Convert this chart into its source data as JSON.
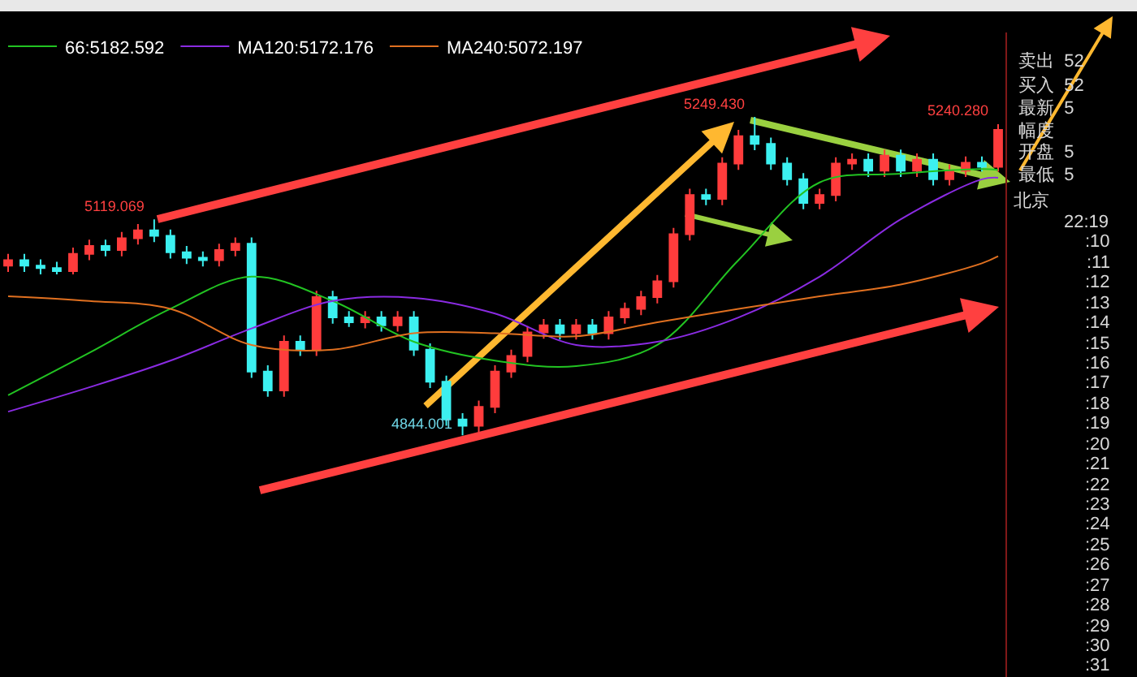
{
  "chart_data": {
    "type": "candlestick",
    "categories": [
      null,
      null,
      null,
      null,
      null,
      null,
      null,
      null,
      null,
      null,
      null,
      null,
      null,
      null,
      null,
      null,
      null,
      null,
      null,
      null,
      null,
      null,
      null,
      null,
      null,
      null,
      null,
      null,
      null,
      null,
      null,
      null,
      null,
      null,
      null,
      null,
      null,
      null,
      null,
      null,
      null,
      null,
      null,
      null,
      null,
      null,
      null,
      null,
      null,
      null,
      null,
      null,
      null,
      null,
      null,
      null,
      null,
      null,
      null,
      null,
      null,
      null
    ],
    "ohlc": [
      [
        5060,
        5075,
        5052,
        5067
      ],
      [
        5067,
        5075,
        5052,
        5060
      ],
      [
        5060,
        5068,
        5049,
        5057
      ],
      [
        5057,
        5065,
        5049,
        5053
      ],
      [
        5053,
        5083,
        5049,
        5075
      ],
      [
        5075,
        5093,
        5067,
        5085
      ],
      [
        5085,
        5093,
        5072,
        5080
      ],
      [
        5080,
        5103,
        5072,
        5095
      ],
      [
        5095,
        5113,
        5087,
        5105
      ],
      [
        5105,
        5119.069,
        5090,
        5098
      ],
      [
        5098,
        5106,
        5069,
        5077
      ],
      [
        5077,
        5085,
        5062,
        5070
      ],
      [
        5070,
        5078,
        5059,
        5067
      ],
      [
        5067,
        5088,
        5059,
        5080
      ],
      [
        5080,
        5096,
        5072,
        5088
      ],
      [
        5088,
        5096,
        4917,
        4925
      ],
      [
        4925,
        4933,
        4893,
        4901
      ],
      [
        4901,
        4971,
        4893,
        4963
      ],
      [
        4963,
        4971,
        4945,
        4953
      ],
      [
        4953,
        5028,
        4945,
        5020
      ],
      [
        5020,
        5028,
        4986,
        4994
      ],
      [
        4994,
        5002,
        4982,
        4988
      ],
      [
        4988,
        5002,
        4980,
        4994
      ],
      [
        4994,
        5002,
        4976,
        4984
      ],
      [
        4984,
        5002,
        4976,
        4994
      ],
      [
        4994,
        5002,
        4945,
        4953
      ],
      [
        4953,
        4961,
        4904,
        4912
      ],
      [
        4912,
        4920,
        4856,
        4864
      ],
      [
        4864,
        4872,
        4844.001,
        4856
      ],
      [
        4856,
        4888,
        4848,
        4880
      ],
      [
        4880,
        4933,
        4872,
        4925
      ],
      [
        4925,
        4953,
        4917,
        4945
      ],
      [
        4945,
        4983,
        4937,
        4975
      ],
      [
        4975,
        4992,
        4967,
        4984
      ],
      [
        4984,
        4992,
        4966,
        4974
      ],
      [
        4974,
        4992,
        4966,
        4984
      ],
      [
        4984,
        4992,
        4966,
        4974
      ],
      [
        4974,
        5002,
        4966,
        4994
      ],
      [
        4994,
        5013,
        4986,
        5005
      ],
      [
        5005,
        5028,
        4997,
        5020
      ],
      [
        5020,
        5048,
        5012,
        5040
      ],
      [
        5040,
        5108,
        5032,
        5100
      ],
      [
        5100,
        5158,
        5092,
        5150
      ],
      [
        5150,
        5158,
        5137,
        5145
      ],
      [
        5145,
        5198,
        5137,
        5190
      ],
      [
        5190,
        5233,
        5182,
        5225
      ],
      [
        5225,
        5249.43,
        5207,
        5215
      ],
      [
        5215,
        5223,
        5182,
        5190
      ],
      [
        5190,
        5198,
        5162,
        5170
      ],
      [
        5170,
        5178,
        5132,
        5140
      ],
      [
        5140,
        5158,
        5132,
        5150
      ],
      [
        5150,
        5198,
        5142,
        5190
      ],
      [
        5190,
        5203,
        5182,
        5195
      ],
      [
        5195,
        5203,
        5173,
        5181
      ],
      [
        5181,
        5208,
        5173,
        5200
      ],
      [
        5200,
        5208,
        5173,
        5181
      ],
      [
        5181,
        5203,
        5173,
        5195
      ],
      [
        5195,
        5203,
        5162,
        5170
      ],
      [
        5170,
        5189,
        5162,
        5181
      ],
      [
        5181,
        5199,
        5173,
        5191
      ],
      [
        5191,
        5199,
        5180,
        5186
      ],
      [
        5186,
        5240.28,
        5180,
        5233
      ]
    ],
    "colors": [
      "#ff3c3c",
      "#3cf0f0",
      "#3cf0f0",
      "#3cf0f0",
      "#ff3c3c",
      "#ff3c3c",
      "#3cf0f0",
      "#ff3c3c",
      "#ff3c3c",
      "#3cf0f0",
      "#3cf0f0",
      "#3cf0f0",
      "#3cf0f0",
      "#ff3c3c",
      "#ff3c3c",
      "#3cf0f0",
      "#3cf0f0",
      "#ff3c3c",
      "#3cf0f0",
      "#ff3c3c",
      "#3cf0f0",
      "#3cf0f0",
      "#ff3c3c",
      "#3cf0f0",
      "#ff3c3c",
      "#3cf0f0",
      "#3cf0f0",
      "#3cf0f0",
      "#3cf0f0",
      "#ff3c3c",
      "#ff3c3c",
      "#ff3c3c",
      "#ff3c3c",
      "#ff3c3c",
      "#3cf0f0",
      "#ff3c3c",
      "#3cf0f0",
      "#ff3c3c",
      "#ff3c3c",
      "#ff3c3c",
      "#ff3c3c",
      "#ff3c3c",
      "#ff3c3c",
      "#3cf0f0",
      "#ff3c3c",
      "#ff3c3c",
      "#3cf0f0",
      "#3cf0f0",
      "#3cf0f0",
      "#3cf0f0",
      "#ff3c3c",
      "#ff3c3c",
      "#ff3c3c",
      "#3cf0f0",
      "#ff3c3c",
      "#3cf0f0",
      "#ff3c3c",
      "#3cf0f0",
      "#ff3c3c",
      "#ff3c3c",
      "#3cf0f0",
      "#ff3c3c"
    ],
    "series": [
      {
        "type": "line",
        "name": "66:5182.592",
        "color": "#22c322",
        "values": [
          4895,
          null,
          null,
          null,
          null,
          4949,
          null,
          null,
          null,
          null,
          5005,
          null,
          null,
          null,
          null,
          5046,
          null,
          null,
          null,
          null,
          5015,
          null,
          null,
          null,
          null,
          4963,
          null,
          null,
          null,
          null,
          4939,
          null,
          null,
          null,
          null,
          4932,
          null,
          null,
          null,
          null,
          4959,
          null,
          null,
          null,
          null,
          5067,
          null,
          null,
          null,
          null,
          5166,
          null,
          null,
          null,
          null,
          5177,
          null,
          null,
          null,
          null,
          5183,
          5182
        ]
      },
      {
        "type": "line",
        "name": "MA120:5172.176",
        "color": "#8a2be2",
        "values": [
          4874,
          null,
          null,
          null,
          null,
          4905,
          null,
          null,
          null,
          null,
          4939,
          null,
          null,
          null,
          null,
          4980,
          null,
          null,
          null,
          null,
          5015,
          null,
          null,
          null,
          null,
          5019,
          null,
          null,
          null,
          null,
          4999,
          null,
          null,
          null,
          null,
          4959,
          null,
          null,
          null,
          null,
          4963,
          null,
          null,
          null,
          null,
          4994,
          null,
          null,
          null,
          null,
          5046,
          null,
          null,
          null,
          null,
          5119,
          null,
          null,
          null,
          null,
          5170,
          5172
        ]
      },
      {
        "type": "line",
        "name": "MA240:5072.197",
        "color": "#e07020",
        "values": [
          5021,
          null,
          null,
          null,
          null,
          5015,
          null,
          null,
          null,
          null,
          5005,
          null,
          null,
          null,
          null,
          4959,
          null,
          null,
          null,
          null,
          4953,
          null,
          null,
          null,
          null,
          4974,
          null,
          null,
          null,
          null,
          4974,
          null,
          null,
          null,
          null,
          4970,
          null,
          null,
          null,
          null,
          4988,
          null,
          null,
          null,
          null,
          5005,
          null,
          null,
          null,
          null,
          5021,
          null,
          null,
          null,
          null,
          5036,
          null,
          null,
          null,
          null,
          5063,
          5072
        ]
      }
    ],
    "ylim": [
      4536,
      5357
    ],
    "tick_labels": false,
    "legend": "top left",
    "annotations": [
      "5119.069",
      "5249.430",
      "4844.001",
      "5240.280",
      "卖出  52",
      "买入  52",
      "最新  5",
      "幅度",
      "开盘  5",
      "最低  5",
      "北京",
      "22:19",
      ":10",
      ":11",
      ":12",
      ":13",
      ":14",
      ":15",
      ":16",
      ":17",
      ":18",
      ":19",
      ":20",
      ":21",
      ":22",
      ":23",
      ":24",
      ":25",
      ":26",
      ":27",
      ":28",
      ":29",
      ":30",
      ":31"
    ]
  }
}
